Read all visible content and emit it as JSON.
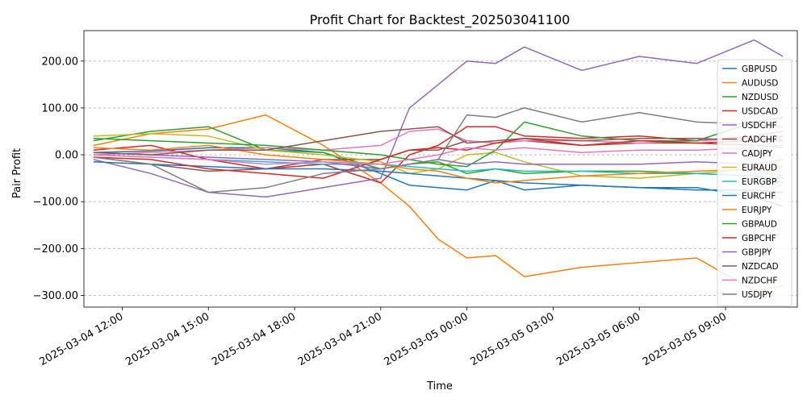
{
  "chart_data": {
    "type": "line",
    "title": "Profit Chart for Backtest_202503041100",
    "xlabel": "Time",
    "ylabel": "Pair Profit",
    "ylim": [
      -325,
      265
    ],
    "xlim": [
      "2025-03-04 10:40",
      "2025-03-05 11:30"
    ],
    "grid": "y-dashed",
    "legend_position": "right",
    "y_ticks": [
      -300,
      -200,
      -100,
      0,
      100,
      200
    ],
    "y_tick_labels": [
      "−300.00",
      "−200.00",
      "−100.00",
      "0.00",
      "100.00",
      "200.00"
    ],
    "x_ticks": [
      "2025-03-04 12:00",
      "2025-03-04 15:00",
      "2025-03-04 18:00",
      "2025-03-04 21:00",
      "2025-03-05 00:00",
      "2025-03-05 03:00",
      "2025-03-05 06:00",
      "2025-03-05 09:00"
    ],
    "x_tick_labels": [
      "2025-03-04 12:00",
      "2025-03-04 15:00",
      "2025-03-04 18:00",
      "2025-03-04 21:00",
      "2025-03-05 00:00",
      "2025-03-05 03:00",
      "2025-03-05 06:00",
      "2025-03-05 09:00"
    ],
    "x_times": [
      "2025-03-04 11:00",
      "2025-03-04 13:00",
      "2025-03-04 15:00",
      "2025-03-04 17:00",
      "2025-03-04 19:00",
      "2025-03-04 21:00",
      "2025-03-04 22:00",
      "2025-03-04 23:00",
      "2025-03-05 00:00",
      "2025-03-05 01:00",
      "2025-03-05 02:00",
      "2025-03-05 04:00",
      "2025-03-05 06:00",
      "2025-03-05 08:00",
      "2025-03-05 10:00",
      "2025-03-05 11:00"
    ],
    "series": [
      {
        "name": "GBPUSD",
        "color": "#1f77b4",
        "values": [
          5,
          8,
          15,
          15,
          5,
          -40,
          -65,
          -70,
          -75,
          -55,
          -75,
          -65,
          -70,
          -70,
          -90,
          -110
        ]
      },
      {
        "name": "AUDUSD",
        "color": "#ff7f0e",
        "values": [
          20,
          45,
          55,
          85,
          20,
          -60,
          -110,
          -180,
          -220,
          -215,
          -260,
          -240,
          -230,
          -220,
          -290,
          -280
        ]
      },
      {
        "name": "NZDUSD",
        "color": "#2ca02c",
        "values": [
          30,
          50,
          60,
          10,
          5,
          -30,
          -20,
          -15,
          -40,
          -30,
          -40,
          -35,
          -35,
          -40,
          -45,
          -60
        ]
      },
      {
        "name": "USDCAD",
        "color": "#d62728",
        "values": [
          10,
          20,
          -10,
          -30,
          -20,
          -60,
          0,
          20,
          60,
          60,
          40,
          35,
          40,
          30,
          40,
          50
        ]
      },
      {
        "name": "USDCHF",
        "color": "#9467bd",
        "values": [
          -10,
          -40,
          -80,
          -90,
          -70,
          -50,
          100,
          150,
          200,
          195,
          230,
          180,
          210,
          195,
          245,
          210
        ]
      },
      {
        "name": "CADCHF",
        "color": "#8c564b",
        "values": [
          -5,
          -20,
          -35,
          -30,
          -10,
          -10,
          10,
          10,
          30,
          25,
          30,
          20,
          25,
          25,
          20,
          15
        ]
      },
      {
        "name": "CADJPY",
        "color": "#e377c2",
        "values": [
          0,
          5,
          10,
          15,
          10,
          20,
          50,
          55,
          30,
          25,
          30,
          30,
          25,
          30,
          35,
          30
        ]
      },
      {
        "name": "EURAUD",
        "color": "#bcbd22",
        "values": [
          40,
          45,
          40,
          10,
          0,
          -15,
          -40,
          -30,
          0,
          5,
          -15,
          -45,
          -50,
          -40,
          -30,
          -45
        ]
      },
      {
        "name": "EURGBP",
        "color": "#17becf",
        "values": [
          0,
          -5,
          -10,
          -15,
          -20,
          -20,
          -25,
          -30,
          -35,
          -30,
          -35,
          -35,
          -40,
          -40,
          -45,
          -50
        ]
      },
      {
        "name": "EURCHF",
        "color": "#1f77b4",
        "values": [
          -15,
          -20,
          -25,
          -30,
          -30,
          -35,
          -40,
          -45,
          -50,
          -55,
          -60,
          -65,
          -70,
          -75,
          -75,
          -80
        ]
      },
      {
        "name": "EURJPY",
        "color": "#ff7f0e",
        "values": [
          15,
          10,
          20,
          0,
          -10,
          -20,
          -30,
          -35,
          -50,
          -60,
          -55,
          -45,
          -40,
          -35,
          -30,
          -25
        ]
      },
      {
        "name": "GBPAUD",
        "color": "#2ca02c",
        "values": [
          35,
          30,
          25,
          20,
          10,
          0,
          -10,
          -20,
          -25,
          10,
          70,
          40,
          30,
          30,
          70,
          80
        ]
      },
      {
        "name": "GBPCHF",
        "color": "#d62728",
        "values": [
          -5,
          -10,
          -30,
          -40,
          -50,
          -10,
          10,
          15,
          10,
          25,
          35,
          20,
          30,
          25,
          30,
          40
        ]
      },
      {
        "name": "GBPJPY",
        "color": "#9467bd",
        "values": [
          5,
          0,
          -5,
          -10,
          -15,
          -30,
          -20,
          -10,
          -20,
          -15,
          -20,
          -20,
          -20,
          -15,
          -20,
          -10
        ]
      },
      {
        "name": "NZDCAD",
        "color": "#8c564b",
        "values": [
          5,
          0,
          10,
          10,
          30,
          50,
          55,
          60,
          25,
          30,
          35,
          30,
          35,
          35,
          30,
          30
        ]
      },
      {
        "name": "NZDCHF",
        "color": "#e377c2",
        "values": [
          0,
          -5,
          -10,
          -20,
          -15,
          -20,
          -10,
          0,
          15,
          10,
          15,
          5,
          10,
          10,
          15,
          20
        ]
      },
      {
        "name": "USDJPY",
        "color": "#7f7f7f",
        "values": [
          -5,
          -20,
          -80,
          -70,
          -40,
          -30,
          -20,
          -10,
          85,
          80,
          100,
          70,
          90,
          70,
          65,
          60
        ]
      }
    ]
  }
}
